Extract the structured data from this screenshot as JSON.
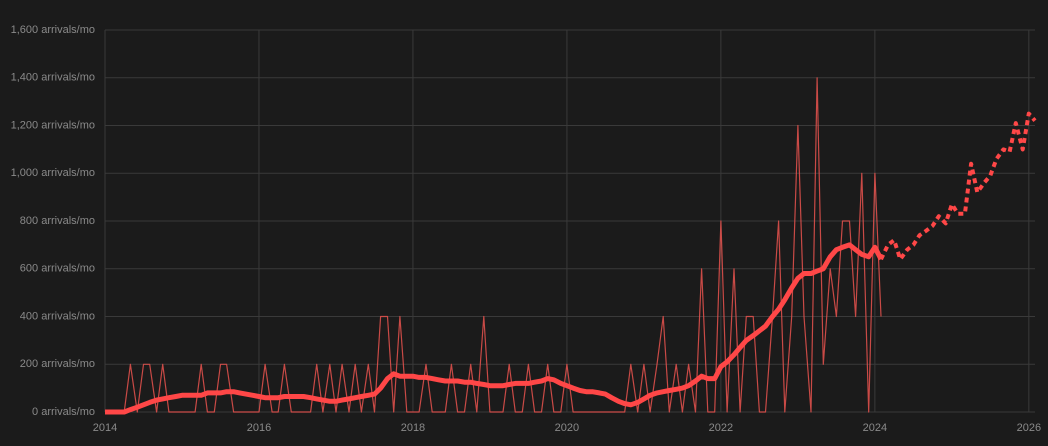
{
  "chart_data": {
    "type": "line",
    "x": [
      2014,
      2014.08,
      2014.17,
      2014.25,
      2014.33,
      2014.42,
      2014.5,
      2014.58,
      2014.67,
      2014.75,
      2014.83,
      2014.92,
      2015,
      2015.08,
      2015.17,
      2015.25,
      2015.33,
      2015.42,
      2015.5,
      2015.58,
      2015.67,
      2015.75,
      2015.83,
      2015.92,
      2016,
      2016.08,
      2016.17,
      2016.25,
      2016.33,
      2016.42,
      2016.5,
      2016.58,
      2016.67,
      2016.75,
      2016.83,
      2016.92,
      2017,
      2017.08,
      2017.17,
      2017.25,
      2017.33,
      2017.42,
      2017.5,
      2017.58,
      2017.67,
      2017.75,
      2017.83,
      2017.92,
      2018,
      2018.08,
      2018.17,
      2018.25,
      2018.33,
      2018.42,
      2018.5,
      2018.58,
      2018.67,
      2018.75,
      2018.83,
      2018.92,
      2019,
      2019.08,
      2019.17,
      2019.25,
      2019.33,
      2019.42,
      2019.5,
      2019.58,
      2019.67,
      2019.75,
      2019.83,
      2019.92,
      2020,
      2020.08,
      2020.17,
      2020.25,
      2020.33,
      2020.42,
      2020.5,
      2020.58,
      2020.67,
      2020.75,
      2020.83,
      2020.92,
      2021,
      2021.08,
      2021.17,
      2021.25,
      2021.33,
      2021.42,
      2021.5,
      2021.58,
      2021.67,
      2021.75,
      2021.83,
      2021.92,
      2022,
      2022.08,
      2022.17,
      2022.25,
      2022.33,
      2022.42,
      2022.5,
      2022.58,
      2022.67,
      2022.75,
      2022.83,
      2022.92,
      2023,
      2023.08,
      2023.17,
      2023.25,
      2023.33,
      2023.42,
      2023.5,
      2023.58,
      2023.67,
      2023.75,
      2023.83,
      2023.92,
      2024,
      2024.08
    ],
    "series": [
      {
        "color": "#e8524e",
        "style": "thin",
        "values": [
          0,
          0,
          0,
          0,
          200,
          0,
          200,
          200,
          0,
          200,
          0,
          0,
          0,
          0,
          0,
          200,
          0,
          0,
          200,
          200,
          0,
          0,
          0,
          0,
          0,
          200,
          0,
          0,
          200,
          0,
          0,
          0,
          0,
          200,
          0,
          200,
          0,
          200,
          0,
          200,
          0,
          200,
          0,
          400,
          400,
          0,
          400,
          0,
          0,
          0,
          200,
          0,
          0,
          0,
          200,
          0,
          0,
          200,
          0,
          400,
          0,
          0,
          0,
          200,
          0,
          0,
          200,
          0,
          0,
          200,
          0,
          0,
          200,
          0,
          0,
          0,
          0,
          0,
          0,
          0,
          0,
          0,
          200,
          0,
          200,
          0,
          200,
          400,
          0,
          200,
          0,
          200,
          0,
          600,
          0,
          0,
          800,
          0,
          600,
          0,
          400,
          400,
          0,
          0,
          400,
          800,
          0,
          400,
          1200,
          400,
          0,
          1400,
          200,
          600,
          400,
          800,
          800,
          400,
          1000,
          0,
          1000,
          400
        ]
      },
      {
        "color": "#ff4747",
        "style": "thick",
        "values": [
          0,
          0,
          0,
          0,
          10,
          20,
          30,
          40,
          50,
          55,
          60,
          65,
          70,
          70,
          70,
          70,
          80,
          80,
          80,
          85,
          85,
          80,
          75,
          70,
          65,
          60,
          60,
          60,
          65,
          65,
          65,
          65,
          60,
          55,
          50,
          45,
          45,
          50,
          55,
          60,
          65,
          70,
          75,
          100,
          140,
          160,
          150,
          150,
          150,
          145,
          145,
          140,
          135,
          130,
          130,
          130,
          125,
          125,
          120,
          115,
          110,
          110,
          110,
          115,
          120,
          120,
          120,
          125,
          130,
          140,
          135,
          120,
          110,
          100,
          90,
          85,
          85,
          80,
          75,
          60,
          45,
          35,
          30,
          40,
          55,
          70,
          80,
          85,
          90,
          95,
          100,
          110,
          130,
          150,
          140,
          140,
          190,
          210,
          240,
          270,
          300,
          320,
          340,
          360,
          400,
          430,
          470,
          520,
          560,
          580,
          580,
          590,
          600,
          650,
          680,
          690,
          700,
          680,
          660,
          650,
          690,
          640
        ]
      },
      {
        "color": "#ff4747",
        "style": "dotted",
        "x": [
          2024.08,
          2024.17,
          2024.25,
          2024.33,
          2024.42,
          2024.5,
          2024.58,
          2024.67,
          2024.75,
          2024.83,
          2024.92,
          2025,
          2025.08,
          2025.17,
          2025.25,
          2025.33,
          2025.42,
          2025.5,
          2025.58,
          2025.67,
          2025.75,
          2025.83,
          2025.92,
          2026,
          2026.08
        ],
        "values": [
          640,
          700,
          720,
          640,
          680,
          700,
          740,
          760,
          780,
          820,
          790,
          870,
          830,
          830,
          1040,
          920,
          960,
          990,
          1060,
          1100,
          1090,
          1210,
          1100,
          1250,
          1220
        ]
      }
    ],
    "xlim": [
      2014,
      2026.08
    ],
    "xticks": [
      2014,
      2016,
      2018,
      2020,
      2022,
      2024,
      2026
    ],
    "ylim": [
      0,
      1600
    ],
    "yticks": [
      {
        "value": 0,
        "label": "0 arrivals/mo"
      },
      {
        "value": 200,
        "label": "200 arrivals/mo"
      },
      {
        "value": 400,
        "label": "400 arrivals/mo"
      },
      {
        "value": 600,
        "label": "600 arrivals/mo"
      },
      {
        "value": 800,
        "label": "800 arrivals/mo"
      },
      {
        "value": 1000,
        "label": "1,000 arrivals/mo"
      },
      {
        "value": 1200,
        "label": "1,200 arrivals/mo"
      },
      {
        "value": 1400,
        "label": "1,400 arrivals/mo"
      },
      {
        "value": 1600,
        "label": "1,600 arrivals/mo"
      }
    ],
    "grid": true
  }
}
